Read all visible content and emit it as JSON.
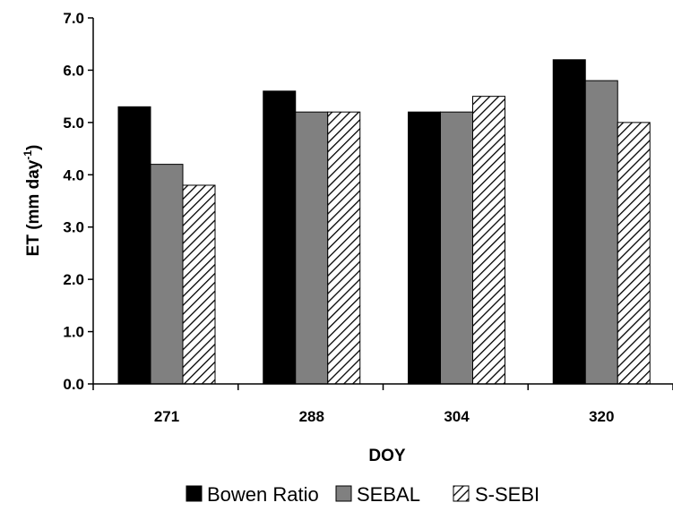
{
  "chart_data": {
    "type": "bar",
    "categories": [
      "271",
      "288",
      "304",
      "320"
    ],
    "series": [
      {
        "name": "Bowen Ratio",
        "values": [
          5.3,
          5.6,
          5.2,
          6.2
        ],
        "color": "#000000",
        "pattern": "solid"
      },
      {
        "name": "SEBAL",
        "values": [
          4.2,
          5.2,
          5.2,
          5.8
        ],
        "color": "#808080",
        "pattern": "solid"
      },
      {
        "name": "S-SEBI",
        "values": [
          3.8,
          5.2,
          5.5,
          5.0
        ],
        "color": "#ffffff",
        "pattern": "diagonal-hatch"
      }
    ],
    "xlabel": "DOY",
    "ylabel_main": "ET (mm day",
    "ylabel_sup": "-1",
    "ylabel_end": ")",
    "ylim": [
      0,
      7
    ],
    "yticks": [
      "0.0",
      "1.0",
      "2.0",
      "3.0",
      "4.0",
      "5.0",
      "6.0",
      "7.0"
    ],
    "grid": false,
    "legend_position": "bottom"
  }
}
